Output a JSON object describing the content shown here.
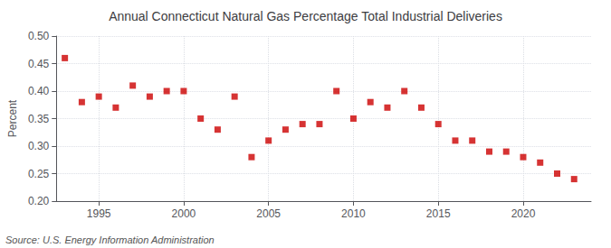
{
  "chart_data": {
    "type": "scatter",
    "title": "Annual Connecticut Natural Gas Percentage Total Industrial Deliveries",
    "ylabel": "Percent",
    "annotation": "Source: U.S. Energy Information Administration",
    "x": [
      1993,
      1994,
      1995,
      1996,
      1997,
      1998,
      1999,
      2000,
      2001,
      2002,
      2003,
      2004,
      2005,
      2006,
      2007,
      2008,
      2009,
      2010,
      2011,
      2012,
      2013,
      2014,
      2015,
      2016,
      2017,
      2018,
      2019,
      2020,
      2021,
      2022,
      2023
    ],
    "values": [
      0.46,
      0.38,
      0.39,
      0.37,
      0.41,
      0.39,
      0.4,
      0.4,
      0.35,
      0.33,
      0.39,
      0.28,
      0.31,
      0.33,
      0.34,
      0.34,
      0.4,
      0.35,
      0.38,
      0.37,
      0.4,
      0.37,
      0.34,
      0.31,
      0.31,
      0.29,
      0.29,
      0.28,
      0.27,
      0.25,
      0.24
    ],
    "color": "#cc0000",
    "marker": "square",
    "xlim": [
      1992.5,
      2024
    ],
    "xticks": [
      1995,
      2000,
      2005,
      2010,
      2015,
      2020
    ],
    "ylim": [
      0.2,
      0.5
    ],
    "yticks": [
      {
        "value": 0.2,
        "label": "0.20"
      },
      0.25,
      {
        "value": 0.3,
        "label": "0.30"
      },
      0.35,
      {
        "value": 0.4,
        "label": "0.40"
      },
      0.45,
      {
        "value": 0.5,
        "label": "0.50"
      }
    ],
    "grid": true
  }
}
